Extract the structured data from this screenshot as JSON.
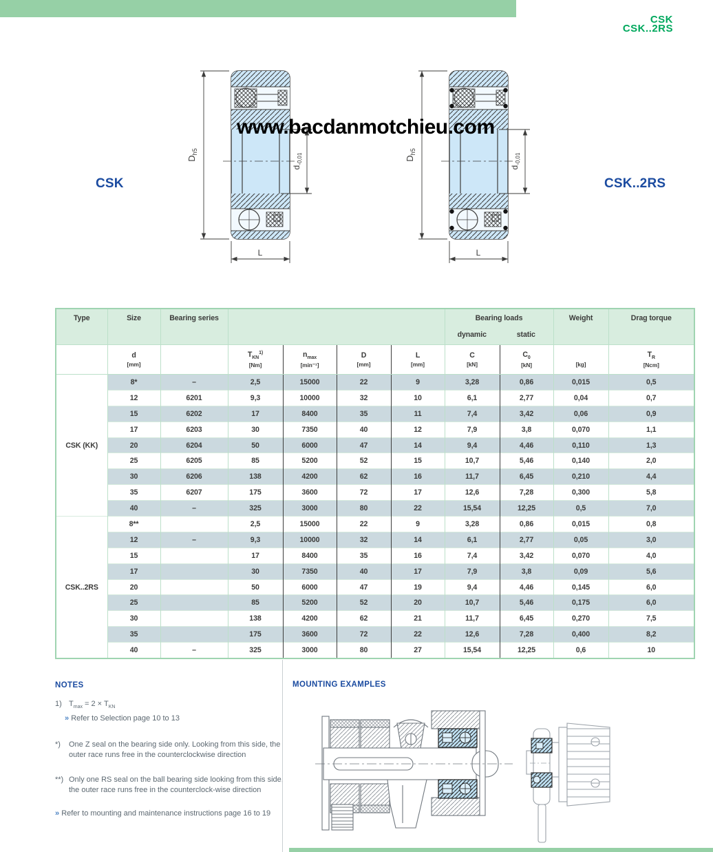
{
  "brand": {
    "line1": "CSK",
    "line2": "CSK..2RS"
  },
  "diagrams": {
    "watermark": "www.bacdanmotchieu.com",
    "left_label": "CSK",
    "right_label": "CSK..2RS",
    "dim_outer_base": "D",
    "dim_outer_sub": "h5",
    "dim_inner_base": "d",
    "dim_inner_sub": "-0,01",
    "dim_length": "L"
  },
  "table": {
    "header": {
      "type": "Type",
      "size": "Size",
      "bearing_series": "Bearing series",
      "bearing_loads": "Bearing loads",
      "dynamic": "dynamic",
      "static": "static",
      "weight": "Weight",
      "drag_torque": "Drag torque"
    },
    "subheader": {
      "size_sym": "d",
      "size_unit": "[mm]",
      "tkn_base": "T",
      "tkn_sub": "KN",
      "tkn_sup": "1)",
      "tkn_unit": "[Nm]",
      "nmax_base": "n",
      "nmax_sub": "max",
      "nmax_unit": "[min⁻¹]",
      "d_sym": "D",
      "d_unit": "[mm]",
      "l_sym": "L",
      "l_unit": "[mm]",
      "c_sym": "C",
      "c_unit": "[kN]",
      "c0_base": "C",
      "c0_sub": "0",
      "c0_unit": "[kN]",
      "weight_unit": "[kg]",
      "tr_base": "T",
      "tr_sub": "R",
      "tr_unit": "[Ncm]"
    },
    "groups": [
      {
        "label": "CSK (KK)",
        "rows": [
          [
            "8*",
            "–",
            "2,5",
            "15000",
            "22",
            "9",
            "3,28",
            "0,86",
            "0,015",
            "0,5"
          ],
          [
            "12",
            "6201",
            "9,3",
            "10000",
            "32",
            "10",
            "6,1",
            "2,77",
            "0,04",
            "0,7"
          ],
          [
            "15",
            "6202",
            "17",
            "8400",
            "35",
            "11",
            "7,4",
            "3,42",
            "0,06",
            "0,9"
          ],
          [
            "17",
            "6203",
            "30",
            "7350",
            "40",
            "12",
            "7,9",
            "3,8",
            "0,070",
            "1,1"
          ],
          [
            "20",
            "6204",
            "50",
            "6000",
            "47",
            "14",
            "9,4",
            "4,46",
            "0,110",
            "1,3"
          ],
          [
            "25",
            "6205",
            "85",
            "5200",
            "52",
            "15",
            "10,7",
            "5,46",
            "0,140",
            "2,0"
          ],
          [
            "30",
            "6206",
            "138",
            "4200",
            "62",
            "16",
            "11,7",
            "6,45",
            "0,210",
            "4,4"
          ],
          [
            "35",
            "6207",
            "175",
            "3600",
            "72",
            "17",
            "12,6",
            "7,28",
            "0,300",
            "5,8"
          ],
          [
            "40",
            "–",
            "325",
            "3000",
            "80",
            "22",
            "15,54",
            "12,25",
            "0,5",
            "7,0"
          ]
        ]
      },
      {
        "label": "CSK..2RS",
        "rows": [
          [
            "8**",
            "",
            "2,5",
            "15000",
            "22",
            "9",
            "3,28",
            "0,86",
            "0,015",
            "0,8"
          ],
          [
            "12",
            "–",
            "9,3",
            "10000",
            "32",
            "14",
            "6,1",
            "2,77",
            "0,05",
            "3,0"
          ],
          [
            "15",
            "",
            "17",
            "8400",
            "35",
            "16",
            "7,4",
            "3,42",
            "0,070",
            "4,0"
          ],
          [
            "17",
            "",
            "30",
            "7350",
            "40",
            "17",
            "7,9",
            "3,8",
            "0,09",
            "5,6"
          ],
          [
            "20",
            "",
            "50",
            "6000",
            "47",
            "19",
            "9,4",
            "4,46",
            "0,145",
            "6,0"
          ],
          [
            "25",
            "",
            "85",
            "5200",
            "52",
            "20",
            "10,7",
            "5,46",
            "0,175",
            "6,0"
          ],
          [
            "30",
            "",
            "138",
            "4200",
            "62",
            "21",
            "11,7",
            "6,45",
            "0,270",
            "7,5"
          ],
          [
            "35",
            "",
            "175",
            "3600",
            "72",
            "22",
            "12,6",
            "7,28",
            "0,400",
            "8,2"
          ],
          [
            "40",
            "–",
            "325",
            "3000",
            "80",
            "27",
            "15,54",
            "12,25",
            "0,6",
            "10"
          ]
        ]
      }
    ]
  },
  "notes": {
    "title": "NOTES",
    "chevron": "»",
    "n1_marker": "1)",
    "n1_t1": "T",
    "n1_t1sub": "max",
    "n1_mid": " = 2 × ",
    "n1_t2": "T",
    "n1_t2sub": "KN",
    "n1_link": "Refer to Selection page 10 to 13",
    "star_marker": "*)",
    "star_text": "One Z seal on the bearing side only. Looking from this side, the outer race runs free in the counterclockwise direction",
    "dstar_marker": "**)",
    "dstar_text": "Only one RS seal on the ball bearing side looking from this side, the outer race runs free in the counterclock-wise direction",
    "final_link": "Refer to mounting and maintenance instructions page 16 to 19"
  },
  "mounting": {
    "title": "MOUNTING EXAMPLES"
  },
  "colors": {
    "green_bar": "#96D0A6",
    "green_brand": "#00A85D",
    "blue_label": "#1B4BA0",
    "table_header_green": "#D8EDDF",
    "row_shade": "#CBD9DF",
    "bearing_blue": "#CDE7F8"
  }
}
